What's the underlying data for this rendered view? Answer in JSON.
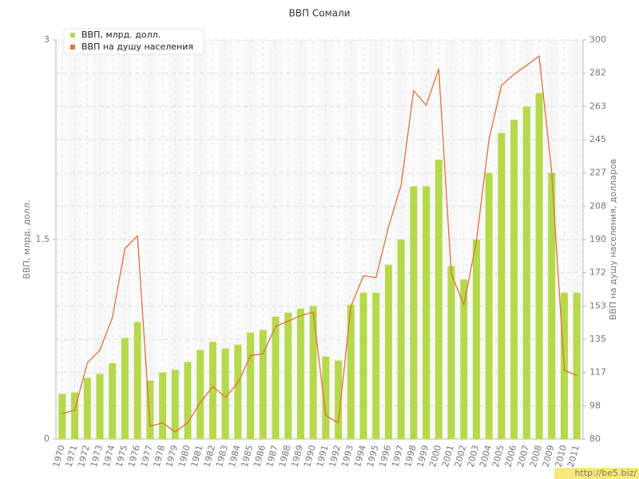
{
  "chart_data": {
    "type": "bar",
    "title": "ВВП Сомали",
    "categories": [
      "1970",
      "1971",
      "1972",
      "1973",
      "1974",
      "1975",
      "1976",
      "1977",
      "1978",
      "1979",
      "1980",
      "1981",
      "1982",
      "1983",
      "1984",
      "1985",
      "1986",
      "1987",
      "1988",
      "1989",
      "1990",
      "1991",
      "1992",
      "1993",
      "1994",
      "1995",
      "1996",
      "1997",
      "1998",
      "1999",
      "2000",
      "2001",
      "2002",
      "2003",
      "2004",
      "2005",
      "2006",
      "2007",
      "2008",
      "2009",
      "2010",
      "2011"
    ],
    "series": [
      {
        "name": "ВВП, млрд. долл.",
        "type": "bar",
        "color": "#b5d94a",
        "values": [
          0.34,
          0.35,
          0.46,
          0.49,
          0.57,
          0.76,
          0.88,
          0.44,
          0.5,
          0.52,
          0.58,
          0.67,
          0.73,
          0.68,
          0.71,
          0.8,
          0.82,
          0.92,
          0.95,
          0.98,
          1.0,
          0.62,
          0.59,
          1.01,
          1.1,
          1.1,
          1.31,
          1.5,
          1.9,
          1.9,
          2.1,
          1.3,
          1.2,
          1.5,
          2.0,
          2.3,
          2.4,
          2.5,
          2.6,
          2.0,
          1.1,
          1.1
        ]
      },
      {
        "name": "ВВП на душу населения",
        "type": "line",
        "axis": "y2",
        "color": "#e0703a",
        "values": [
          94,
          96,
          122,
          129,
          147,
          185,
          192,
          87,
          89,
          84,
          89,
          100,
          109,
          103,
          111,
          126,
          127,
          142,
          145,
          148,
          150,
          93,
          89,
          153,
          170,
          169,
          197,
          220,
          272,
          264,
          284,
          171,
          154,
          189,
          245,
          275,
          281,
          286,
          291,
          227,
          118,
          115
        ]
      }
    ],
    "ylabel": "ВВП, млрд. долл.",
    "y2label": "ВВП на душу населения, долларов",
    "ylim": [
      0,
      3
    ],
    "yticks": [
      0,
      1.5,
      3
    ],
    "y2lim": [
      80,
      300
    ],
    "y2ticks": [
      80,
      {
        "value": 98.33,
        "label": "98"
      },
      {
        "value": 116.67,
        "label": "117"
      },
      135,
      {
        "value": 153.33,
        "label": "153"
      },
      {
        "value": 171.67,
        "label": "172"
      },
      190,
      {
        "value": 208.33,
        "label": "208"
      },
      {
        "value": 226.67,
        "label": "227"
      },
      245,
      {
        "value": 263.33,
        "label": "263"
      },
      {
        "value": 281.67,
        "label": "282"
      },
      300
    ],
    "grid": true,
    "legend": "top-left",
    "watermark": "http://be5.biz/"
  }
}
